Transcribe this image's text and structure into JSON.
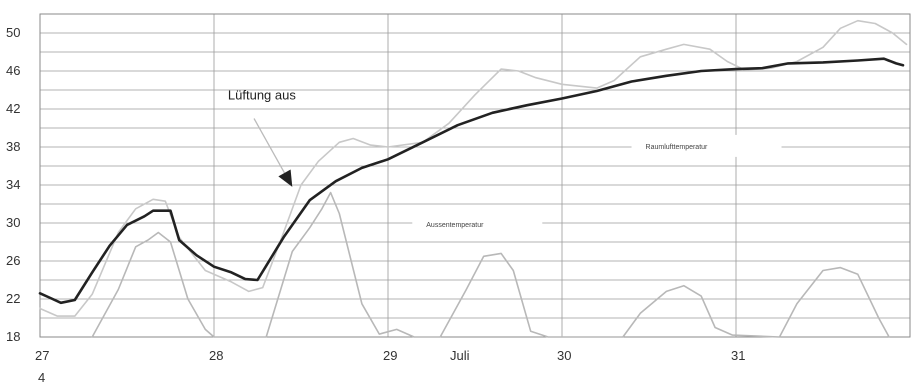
{
  "figure_number": "4",
  "chart_data": {
    "type": "line",
    "title": "",
    "xlabel": "",
    "ylabel": "",
    "x_tick_labels": [
      "27",
      "28",
      "29",
      "30",
      "31"
    ],
    "x_month_label": "Juli",
    "xlim": [
      27,
      32
    ],
    "ylim": [
      18,
      52
    ],
    "y_ticks": [
      18,
      22,
      26,
      30,
      34,
      38,
      42,
      46,
      50
    ],
    "grid": true,
    "series": [
      {
        "name": "Raumlufttemperatur",
        "color": "#222222",
        "points": [
          [
            27.0,
            22.6
          ],
          [
            27.06,
            22.1
          ],
          [
            27.12,
            21.6
          ],
          [
            27.2,
            21.9
          ],
          [
            27.3,
            24.8
          ],
          [
            27.4,
            27.6
          ],
          [
            27.5,
            29.8
          ],
          [
            27.6,
            30.7
          ],
          [
            27.65,
            31.3
          ],
          [
            27.75,
            31.3
          ],
          [
            27.8,
            28.2
          ],
          [
            27.9,
            26.6
          ],
          [
            28.0,
            25.4
          ],
          [
            28.1,
            24.8
          ],
          [
            28.18,
            24.1
          ],
          [
            28.25,
            24.0
          ],
          [
            28.3,
            25.5
          ],
          [
            28.4,
            28.5
          ],
          [
            28.55,
            32.4
          ],
          [
            28.7,
            34.4
          ],
          [
            28.85,
            35.8
          ],
          [
            29.0,
            36.7
          ],
          [
            29.2,
            38.5
          ],
          [
            29.4,
            40.3
          ],
          [
            29.6,
            41.6
          ],
          [
            29.8,
            42.4
          ],
          [
            30.0,
            43.1
          ],
          [
            30.2,
            43.9
          ],
          [
            30.4,
            44.9
          ],
          [
            30.6,
            45.5
          ],
          [
            30.8,
            46.0
          ],
          [
            31.0,
            46.2
          ],
          [
            31.15,
            46.3
          ],
          [
            31.3,
            46.8
          ],
          [
            31.5,
            46.9
          ],
          [
            31.7,
            47.1
          ],
          [
            31.85,
            47.3
          ],
          [
            31.92,
            46.8
          ],
          [
            31.96,
            46.6
          ]
        ]
      },
      {
        "name": "Aussentemperatur",
        "color": "#b8b8b8",
        "points": [
          [
            27.3,
            18.0
          ],
          [
            27.45,
            23.0
          ],
          [
            27.55,
            27.5
          ],
          [
            27.62,
            28.2
          ],
          [
            27.68,
            29.0
          ],
          [
            27.75,
            28.0
          ],
          [
            27.85,
            22.0
          ],
          [
            27.95,
            18.8
          ],
          [
            28.0,
            18.0
          ],
          [
            28.3,
            18.0
          ],
          [
            28.45,
            27.0
          ],
          [
            28.55,
            29.5
          ],
          [
            28.62,
            31.5
          ],
          [
            28.67,
            33.2
          ],
          [
            28.72,
            31.0
          ],
          [
            28.85,
            21.5
          ],
          [
            28.95,
            18.3
          ],
          [
            29.05,
            18.8
          ],
          [
            29.15,
            18.0
          ],
          [
            29.3,
            18.0
          ],
          [
            29.45,
            23.0
          ],
          [
            29.55,
            26.5
          ],
          [
            29.65,
            26.8
          ],
          [
            29.72,
            25.0
          ],
          [
            29.82,
            18.6
          ],
          [
            29.92,
            18.0
          ],
          [
            30.35,
            18.0
          ],
          [
            30.45,
            20.5
          ],
          [
            30.6,
            22.8
          ],
          [
            30.7,
            23.4
          ],
          [
            30.8,
            22.3
          ],
          [
            30.88,
            19.0
          ],
          [
            30.98,
            18.2
          ],
          [
            31.25,
            18.0
          ],
          [
            31.35,
            21.5
          ],
          [
            31.5,
            25.0
          ],
          [
            31.6,
            25.3
          ],
          [
            31.7,
            24.6
          ],
          [
            31.82,
            20.0
          ],
          [
            31.88,
            18.0
          ]
        ]
      },
      {
        "name": "",
        "color": "#c8c8c8",
        "points": [
          [
            27.0,
            21.0
          ],
          [
            27.1,
            20.2
          ],
          [
            27.2,
            20.2
          ],
          [
            27.3,
            22.5
          ],
          [
            27.45,
            29.0
          ],
          [
            27.55,
            31.5
          ],
          [
            27.65,
            32.5
          ],
          [
            27.72,
            32.3
          ],
          [
            27.8,
            28.5
          ],
          [
            27.95,
            25.0
          ],
          [
            28.1,
            23.8
          ],
          [
            28.2,
            22.8
          ],
          [
            28.28,
            23.2
          ],
          [
            28.4,
            29.0
          ],
          [
            28.5,
            34.0
          ],
          [
            28.6,
            36.5
          ],
          [
            28.72,
            38.5
          ],
          [
            28.8,
            38.9
          ],
          [
            28.9,
            38.2
          ],
          [
            29.0,
            38.0
          ],
          [
            29.2,
            38.5
          ],
          [
            29.35,
            40.5
          ],
          [
            29.5,
            43.5
          ],
          [
            29.65,
            46.2
          ],
          [
            29.75,
            46.0
          ],
          [
            29.85,
            45.3
          ],
          [
            30.0,
            44.6
          ],
          [
            30.2,
            44.2
          ],
          [
            30.3,
            45.0
          ],
          [
            30.45,
            47.5
          ],
          [
            30.6,
            48.3
          ],
          [
            30.7,
            48.8
          ],
          [
            30.85,
            48.3
          ],
          [
            30.95,
            47.0
          ],
          [
            31.05,
            46.1
          ],
          [
            31.2,
            46.3
          ],
          [
            31.35,
            47.0
          ],
          [
            31.5,
            48.5
          ],
          [
            31.6,
            50.5
          ],
          [
            31.7,
            51.3
          ],
          [
            31.8,
            51.0
          ],
          [
            31.9,
            50.0
          ],
          [
            31.98,
            48.8
          ]
        ]
      }
    ],
    "annotations": [
      {
        "text": "Lüftung aus",
        "x": 28.08,
        "y": 43.0
      },
      {
        "text": "Raumlufttemperatur",
        "x": 30.48,
        "y": 37.8
      },
      {
        "text": "Aussentemperatur",
        "x": 29.22,
        "y": 29.6
      }
    ],
    "arrow": {
      "from": [
        28.23,
        41.0
      ],
      "to": [
        28.45,
        33.8
      ]
    }
  }
}
